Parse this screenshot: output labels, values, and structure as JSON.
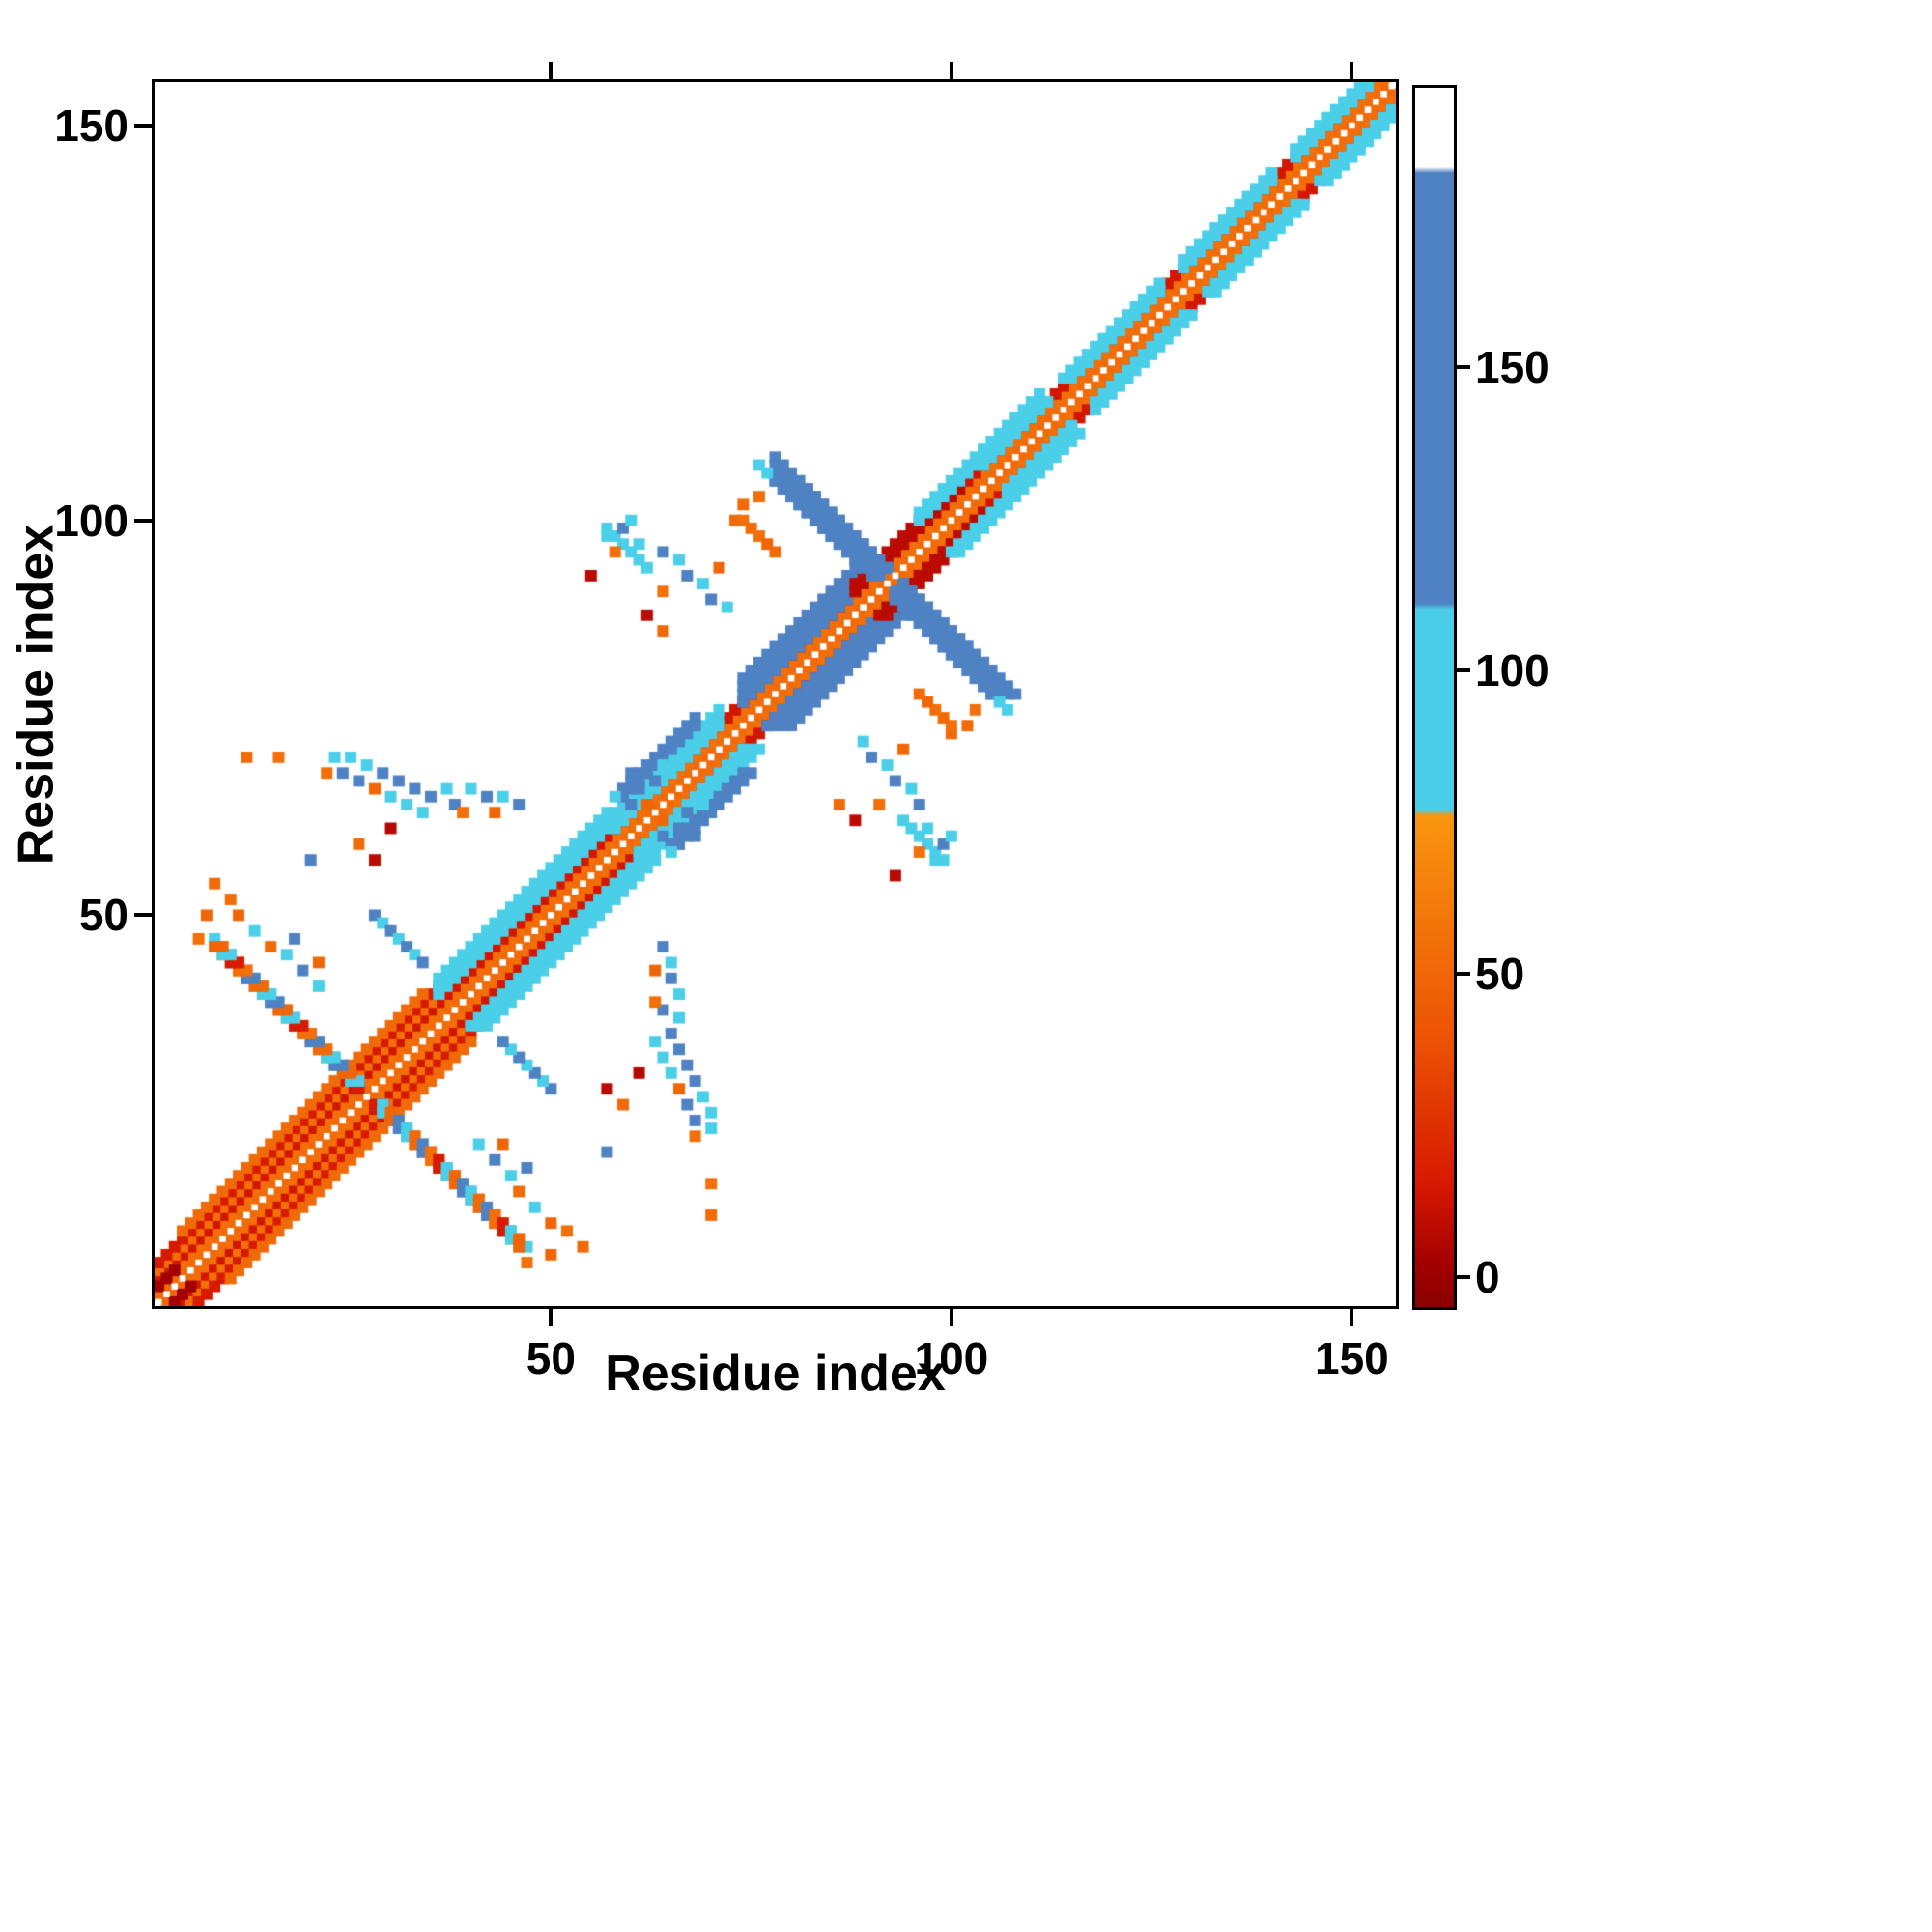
{
  "figure": {
    "background": "#ffffff"
  },
  "chart_data": {
    "type": "heatmap",
    "title": "",
    "xlabel": "Residue index",
    "ylabel": "Residue index",
    "xlim": [
      0.5,
      155.5
    ],
    "ylim": [
      0.5,
      155.5
    ],
    "xticks": [
      50,
      100,
      150
    ],
    "yticks": [
      50,
      100,
      150
    ],
    "n_residues": 155,
    "symmetric": true,
    "grid": false,
    "legend": "colorbar-right",
    "cell_size_residues": 1.45,
    "colormap_stops": [
      [
        -5,
        "#8a0000"
      ],
      [
        2,
        "#a30000"
      ],
      [
        15,
        "#d61800"
      ],
      [
        40,
        "#ed5404"
      ],
      [
        76,
        "#f9950f"
      ],
      [
        77,
        "#4bcfe9"
      ],
      [
        110,
        "#4bcfe9"
      ],
      [
        111,
        "#4f82c3"
      ],
      [
        182,
        "#4f82c3"
      ],
      [
        183,
        "#ffffff"
      ],
      [
        196,
        "#ffffff"
      ]
    ],
    "colorbar": {
      "vmin": -5,
      "vmax": 196,
      "ticks": [
        0,
        50,
        100,
        150
      ]
    },
    "contacts": {
      "diag_segments": [
        [
          1,
          154,
          1,
          1,
          52
        ],
        [
          1,
          153,
          2,
          2,
          55
        ],
        [
          1,
          152,
          3,
          3,
          14
        ],
        [
          1,
          36,
          4,
          4,
          55
        ],
        [
          1,
          36,
          5,
          5,
          16
        ],
        [
          4,
          34,
          6,
          6,
          52
        ],
        [
          36,
          57,
          4,
          6,
          86
        ],
        [
          58,
          71,
          3,
          5,
          88
        ],
        [
          59,
          68,
          6,
          7,
          122
        ],
        [
          74,
          89,
          3,
          6,
          126
        ],
        [
          88,
          101,
          3,
          4,
          8
        ],
        [
          96,
          111,
          4,
          5,
          86
        ],
        [
          104,
          112,
          3,
          3,
          86
        ],
        [
          115,
          126,
          3,
          4,
          86
        ],
        [
          129,
          140,
          3,
          4,
          86
        ],
        [
          143,
          154,
          3,
          4,
          86
        ]
      ],
      "anti_segments": [
        [
          54,
          8,
          46,
          2,
          [
            86,
            52,
            122,
            55,
            16,
            86,
            50,
            124
          ]
        ],
        [
          183,
          78,
          105,
          4,
          [
            124,
            128,
            122,
            130
          ]
        ],
        [
          78,
          28,
          34,
          1,
          [
            122,
            86
          ]
        ],
        [
          156,
          57,
          62,
          1,
          [
            86
          ]
        ]
      ],
      "points": [
        [
          24,
          68,
          122
        ],
        [
          25,
          70,
          86
        ],
        [
          26,
          67,
          122
        ],
        [
          27,
          69,
          86
        ],
        [
          28,
          66,
          50
        ],
        [
          29,
          68,
          122
        ],
        [
          30,
          65,
          86
        ],
        [
          31,
          67,
          122
        ],
        [
          32,
          64,
          86
        ],
        [
          33,
          66,
          122
        ],
        [
          34,
          63,
          86
        ],
        [
          35,
          65,
          122
        ],
        [
          23,
          70,
          86
        ],
        [
          22,
          68,
          55
        ],
        [
          12,
          70,
          52
        ],
        [
          16,
          70,
          55
        ],
        [
          20,
          57,
          122
        ],
        [
          28,
          57,
          8
        ],
        [
          26,
          59,
          52
        ],
        [
          30,
          61,
          6
        ],
        [
          46,
          64,
          122
        ],
        [
          44,
          65,
          86
        ],
        [
          42,
          65,
          122
        ],
        [
          40,
          66,
          86
        ],
        [
          38,
          64,
          122
        ],
        [
          37,
          66,
          86
        ],
        [
          43,
          63,
          50
        ],
        [
          39,
          63,
          55
        ],
        [
          41,
          21,
          86
        ],
        [
          43,
          19,
          122
        ],
        [
          45,
          17,
          86
        ],
        [
          46,
          15,
          52
        ],
        [
          48,
          13,
          86
        ],
        [
          50,
          11,
          50
        ],
        [
          52,
          10,
          55
        ],
        [
          44,
          21,
          50
        ],
        [
          47,
          18,
          122
        ],
        [
          54,
          8,
          52
        ],
        [
          47,
          6,
          55
        ],
        [
          50,
          7,
          50
        ],
        [
          59,
          66,
          126
        ],
        [
          60,
          68,
          126
        ],
        [
          61,
          66,
          130
        ],
        [
          62,
          68,
          122
        ],
        [
          60,
          64,
          122
        ],
        [
          63,
          67,
          126
        ],
        [
          58,
          65,
          86
        ],
        [
          64,
          69,
          86
        ],
        [
          62,
          64,
          50
        ],
        [
          89,
          72,
          86
        ],
        [
          90,
          70,
          122
        ],
        [
          92,
          69,
          86
        ],
        [
          93,
          67,
          122
        ],
        [
          95,
          66,
          86
        ],
        [
          96,
          64,
          122
        ],
        [
          97,
          61,
          86
        ],
        [
          99,
          59,
          122
        ],
        [
          94,
          71,
          50
        ],
        [
          91,
          64,
          55
        ],
        [
          98,
          57,
          86
        ],
        [
          88,
          62,
          8
        ],
        [
          86,
          64,
          52
        ],
        [
          100,
          60,
          86
        ],
        [
          96,
          58,
          55
        ],
        [
          55,
          93,
          8
        ],
        [
          73,
          100,
          52
        ],
        [
          74,
          100,
          55
        ],
        [
          75,
          99,
          52
        ],
        [
          76,
          98,
          55
        ],
        [
          77,
          97,
          50
        ],
        [
          78,
          96,
          52
        ],
        [
          74,
          102,
          52
        ],
        [
          76,
          103,
          55
        ],
        [
          76,
          107,
          86
        ],
        [
          77,
          106,
          86
        ],
        [
          1,
          3,
          2
        ],
        [
          2,
          4,
          2
        ],
        [
          3,
          5,
          2
        ],
        [
          110,
          106,
          86
        ],
        [
          118,
          114,
          86
        ],
        [
          122,
          118,
          86
        ],
        [
          133,
          129,
          86
        ],
        [
          137,
          133,
          86
        ],
        [
          147,
          143,
          86
        ],
        [
          151,
          147,
          86
        ],
        [
          153,
          150,
          86
        ]
      ]
    }
  }
}
